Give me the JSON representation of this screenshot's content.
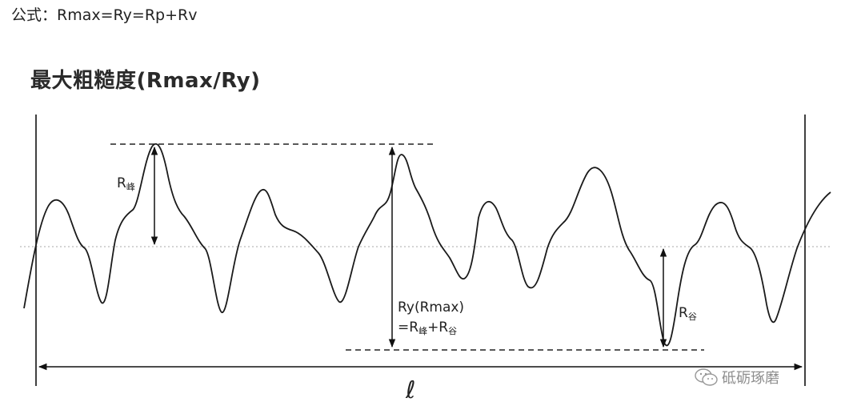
{
  "formula": "公式：Rmax=Ry=Rp+Rv",
  "figure": {
    "title": "最大粗糙度(Rmax/Ry)",
    "labels": {
      "r_peak_main": "R",
      "r_peak_sub": "峰",
      "ry_line1": "Ry(Rmax)",
      "ry_line2_a": "=R",
      "ry_line2_b": "峰",
      "ry_line2_c": "+R",
      "ry_line2_d": "谷",
      "r_valley_main": "R",
      "r_valley_sub": "谷",
      "length_symbol": "ℓ"
    }
  },
  "watermark": {
    "icon": "wechat-icon",
    "text": "砥砺琢磨"
  }
}
